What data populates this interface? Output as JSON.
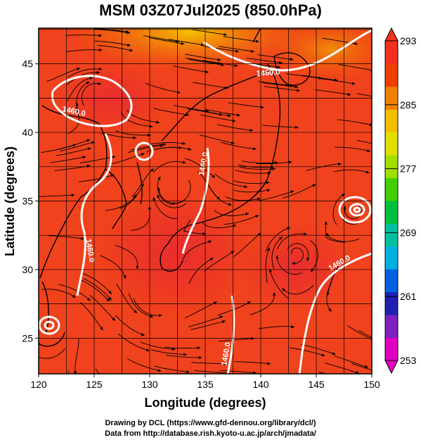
{
  "title": "MSM 03Z07Jul2025 (850.0hPa)",
  "x_axis": {
    "label": "Longitude (degrees)",
    "ticks": [
      120,
      125,
      130,
      135,
      140,
      145,
      150
    ],
    "range": [
      120,
      150
    ]
  },
  "y_axis": {
    "label": "Latitude  (degrees)",
    "ticks": [
      25,
      30,
      35,
      40,
      45
    ],
    "range": [
      22.4,
      47.6
    ]
  },
  "colorbar": {
    "ticks": [
      253,
      261,
      269,
      277,
      285,
      293
    ],
    "range": [
      253,
      293
    ],
    "colors": [
      "#e000c0",
      "#8020c0",
      "#2020b0",
      "#0060e0",
      "#00b0e0",
      "#00c0a0",
      "#00c040",
      "#40d000",
      "#a0e000",
      "#e0e000",
      "#f0c000",
      "#f08000",
      "#f04000",
      "#f03020"
    ]
  },
  "contours": [
    {
      "label": "1460.0"
    },
    {
      "label": "1460.0"
    },
    {
      "label": "1460.0"
    },
    {
      "label": "1460.0"
    },
    {
      "label": "1460.0"
    },
    {
      "label": "1460.0"
    }
  ],
  "credits": {
    "line1": "Drawing by DCL (https://www.gfd-dennou.org/library/dcl/)",
    "line2": "Data from http://database.rish.kyoto-u.ac.jp/arch/jmadata/"
  }
}
